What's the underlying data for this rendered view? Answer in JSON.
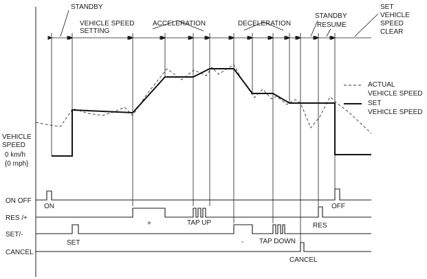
{
  "phases": {
    "standby": "STANDBY",
    "speed_setting_1": "VEHICLE SPEED",
    "speed_setting_2": "SETTING",
    "acceleration": "ACCELERATION",
    "deceleration": "DECELERATION",
    "standby2": "STANDBY",
    "resume": "RESUME",
    "set_clear_1": "SET",
    "set_clear_2": "VEHICLE",
    "set_clear_3": "SPEED",
    "set_clear_4": "CLEAR"
  },
  "legend": {
    "actual_1": "ACTUAL",
    "actual_2": "VEHICLE SPEED",
    "set_1": "SET",
    "set_2": "VEHICLE SPEED"
  },
  "axis": {
    "label_1": "VEHICLE",
    "label_2": "SPEED",
    "label_3": "0 km/h",
    "label_4": "{0 mph}"
  },
  "signals": {
    "on_off": "ON OFF",
    "res_plus": "RES /+",
    "set_minus": "SET/-",
    "cancel": "CANCEL"
  },
  "pulses": {
    "on": "ON",
    "off": "OFF",
    "plus": "+",
    "tap_up": "TAP UP",
    "res": "RES",
    "set": "SET",
    "minus": "-",
    "tap_down": "TAP DOWN",
    "cancel": "CANCEL"
  }
}
